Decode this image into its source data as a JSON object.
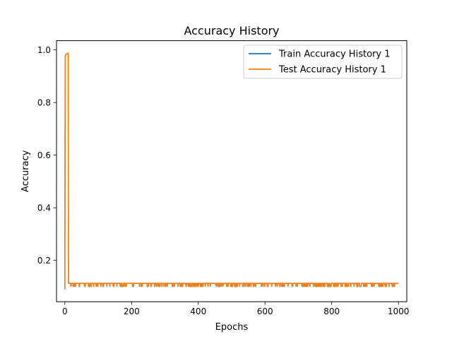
{
  "chart_data": {
    "type": "line",
    "title": "Accuracy History",
    "xlabel": "Epochs",
    "ylabel": "Accuracy",
    "xlim": [
      -25,
      1025
    ],
    "ylim": [
      0.043,
      1.035
    ],
    "xticks": [
      0,
      200,
      400,
      600,
      800,
      1000
    ],
    "xtick_labels": [
      "0",
      "200",
      "400",
      "600",
      "800",
      "1000"
    ],
    "yticks": [
      0.2,
      0.4,
      0.6,
      0.8,
      1.0
    ],
    "ytick_labels": [
      "0.2",
      "0.4",
      "0.6",
      "0.8",
      "1.0"
    ],
    "grid": false,
    "legend_position": "top-right",
    "x_range": [
      0,
      1000
    ],
    "early_phase": {
      "x": [
        0,
        1,
        2,
        3,
        5,
        8,
        10,
        11
      ],
      "values": [
        0.09,
        0.978,
        0.98,
        0.982,
        0.985,
        0.987,
        0.987,
        0.113
      ]
    },
    "plateau": {
      "x_start": 12,
      "x_end": 1000,
      "high_value": 0.113,
      "low_value": 0.101
    },
    "series": [
      {
        "name": "Train Accuracy History 1",
        "color": "#1f77b4"
      },
      {
        "name": "Test Accuracy History 1",
        "color": "#ff7f0e"
      }
    ]
  }
}
